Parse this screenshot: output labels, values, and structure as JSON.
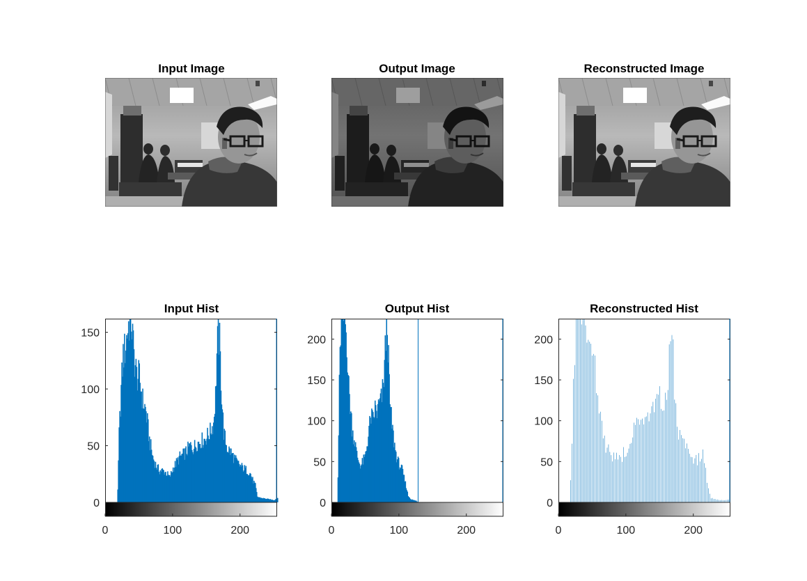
{
  "figure": {
    "panels": [
      {
        "title": "Input Image",
        "tone": "normal"
      },
      {
        "title": "Output Image",
        "tone": "dark"
      },
      {
        "title": "Reconstructed Image",
        "tone": "normal"
      }
    ]
  },
  "colors": {
    "bar": "#0072BD",
    "axis": "#262626",
    "background": "#FFFFFF"
  },
  "chart_data": [
    {
      "type": "bar",
      "title": "Input Hist",
      "xlim": [
        0,
        255
      ],
      "ylim": [
        0,
        162
      ],
      "xticks": [
        0,
        100,
        200
      ],
      "yticks": [
        0,
        50,
        100,
        150
      ],
      "colorbar": "gray",
      "profile": [
        [
          0,
          0
        ],
        [
          17,
          0
        ],
        [
          18,
          10
        ],
        [
          20,
          60
        ],
        [
          23,
          100
        ],
        [
          26,
          130
        ],
        [
          29,
          135
        ],
        [
          32,
          150
        ],
        [
          35,
          160
        ],
        [
          38,
          162
        ],
        [
          42,
          130
        ],
        [
          46,
          112
        ],
        [
          50,
          110
        ],
        [
          55,
          90
        ],
        [
          60,
          80
        ],
        [
          65,
          55
        ],
        [
          70,
          40
        ],
        [
          75,
          32
        ],
        [
          80,
          28
        ],
        [
          85,
          28
        ],
        [
          90,
          26
        ],
        [
          95,
          22
        ],
        [
          100,
          30
        ],
        [
          105,
          35
        ],
        [
          110,
          40
        ],
        [
          115,
          42
        ],
        [
          120,
          45
        ],
        [
          125,
          50
        ],
        [
          130,
          48
        ],
        [
          135,
          52
        ],
        [
          140,
          54
        ],
        [
          145,
          55
        ],
        [
          150,
          58
        ],
        [
          155,
          62
        ],
        [
          160,
          70
        ],
        [
          163,
          95
        ],
        [
          165,
          130
        ],
        [
          167,
          150
        ],
        [
          169,
          140
        ],
        [
          172,
          95
        ],
        [
          175,
          62
        ],
        [
          180,
          48
        ],
        [
          185,
          45
        ],
        [
          190,
          40
        ],
        [
          195,
          35
        ],
        [
          200,
          32
        ],
        [
          205,
          30
        ],
        [
          210,
          28
        ],
        [
          215,
          25
        ],
        [
          218,
          20
        ],
        [
          222,
          15
        ],
        [
          225,
          5
        ],
        [
          230,
          4
        ],
        [
          240,
          3
        ],
        [
          250,
          2
        ],
        [
          255,
          4
        ]
      ]
    },
    {
      "type": "bar",
      "title": "Output Hist",
      "xlim": [
        0,
        255
      ],
      "ylim": [
        0,
        225
      ],
      "xticks": [
        0,
        100,
        200
      ],
      "yticks": [
        0,
        50,
        100,
        150,
        200
      ],
      "colorbar": "gray",
      "profile": [
        [
          0,
          0
        ],
        [
          8,
          0
        ],
        [
          9,
          30
        ],
        [
          11,
          140
        ],
        [
          13,
          210
        ],
        [
          15,
          225
        ],
        [
          19,
          225
        ],
        [
          22,
          200
        ],
        [
          25,
          140
        ],
        [
          28,
          110
        ],
        [
          31,
          85
        ],
        [
          34,
          75
        ],
        [
          37,
          58
        ],
        [
          40,
          50
        ],
        [
          43,
          45
        ],
        [
          46,
          50
        ],
        [
          49,
          55
        ],
        [
          52,
          70
        ],
        [
          55,
          90
        ],
        [
          58,
          105
        ],
        [
          61,
          100
        ],
        [
          64,
          115
        ],
        [
          67,
          110
        ],
        [
          70,
          120
        ],
        [
          73,
          125
        ],
        [
          76,
          140
        ],
        [
          78,
          170
        ],
        [
          80,
          200
        ],
        [
          82,
          225
        ],
        [
          84,
          170
        ],
        [
          86,
          120
        ],
        [
          89,
          95
        ],
        [
          92,
          75
        ],
        [
          95,
          60
        ],
        [
          98,
          50
        ],
        [
          101,
          45
        ],
        [
          104,
          40
        ],
        [
          107,
          30
        ],
        [
          110,
          20
        ],
        [
          113,
          8
        ],
        [
          117,
          4
        ],
        [
          120,
          3
        ],
        [
          125,
          2
        ],
        [
          127,
          0
        ],
        [
          129,
          0
        ],
        [
          255,
          0
        ]
      ],
      "spikes": [
        [
          128,
          225
        ]
      ]
    },
    {
      "type": "bar",
      "title": "Reconstructed Hist",
      "xlim": [
        0,
        255
      ],
      "ylim": [
        0,
        225
      ],
      "xticks": [
        0,
        100,
        200
      ],
      "yticks": [
        0,
        50,
        100,
        150,
        200
      ],
      "colorbar": "gray",
      "comb": 2,
      "profile": [
        [
          0,
          0
        ],
        [
          17,
          0
        ],
        [
          18,
          30
        ],
        [
          20,
          80
        ],
        [
          22,
          140
        ],
        [
          24,
          185
        ],
        [
          26,
          225
        ],
        [
          29,
          225
        ],
        [
          32,
          225
        ],
        [
          35,
          225
        ],
        [
          38,
          225
        ],
        [
          41,
          225
        ],
        [
          44,
          215
        ],
        [
          47,
          205
        ],
        [
          50,
          190
        ],
        [
          53,
          170
        ],
        [
          56,
          150
        ],
        [
          59,
          120
        ],
        [
          62,
          100
        ],
        [
          66,
          82
        ],
        [
          70,
          70
        ],
        [
          75,
          62
        ],
        [
          80,
          58
        ],
        [
          85,
          55
        ],
        [
          90,
          52
        ],
        [
          95,
          58
        ],
        [
          100,
          65
        ],
        [
          105,
          70
        ],
        [
          110,
          80
        ],
        [
          115,
          98
        ],
        [
          120,
          100
        ],
        [
          125,
          90
        ],
        [
          130,
          102
        ],
        [
          135,
          98
        ],
        [
          140,
          115
        ],
        [
          145,
          118
        ],
        [
          150,
          125
        ],
        [
          155,
          115
        ],
        [
          160,
          130
        ],
        [
          163,
          150
        ],
        [
          165,
          190
        ],
        [
          167,
          225
        ],
        [
          169,
          225
        ],
        [
          171,
          140
        ],
        [
          174,
          110
        ],
        [
          177,
          90
        ],
        [
          180,
          82
        ],
        [
          185,
          75
        ],
        [
          190,
          65
        ],
        [
          195,
          60
        ],
        [
          200,
          55
        ],
        [
          205,
          52
        ],
        [
          210,
          55
        ],
        [
          215,
          60
        ],
        [
          218,
          40
        ],
        [
          221,
          20
        ],
        [
          225,
          6
        ],
        [
          230,
          4
        ],
        [
          240,
          3
        ],
        [
          250,
          3
        ],
        [
          255,
          5
        ]
      ]
    }
  ]
}
